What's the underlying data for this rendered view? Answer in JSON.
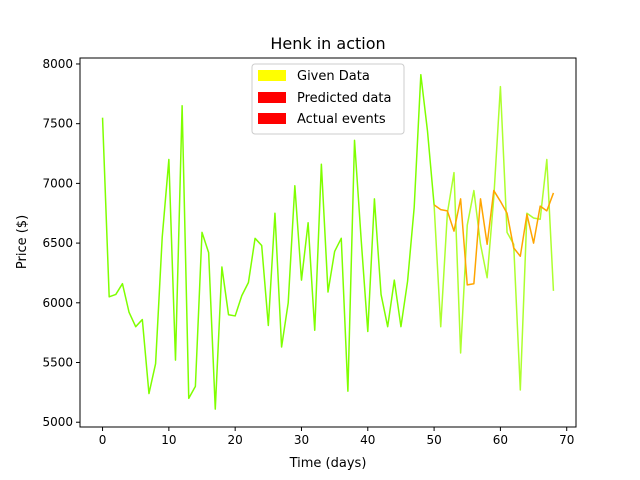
{
  "chart_data": {
    "type": "line",
    "title": "Henk in action",
    "xlabel": "Time (days)",
    "ylabel": "Price ($)",
    "xlim": [
      -3.4,
      71.4
    ],
    "ylim": [
      4960,
      8050
    ],
    "xticks": [
      0,
      10,
      20,
      30,
      40,
      50,
      60,
      70
    ],
    "yticks": [
      5000,
      5500,
      6000,
      6500,
      7000,
      7500,
      8000
    ],
    "legend_position": "upper-center",
    "legend": [
      {
        "label": "Given Data",
        "color": "#ffff00"
      },
      {
        "label": "Predicted data",
        "color": "#ff0000"
      },
      {
        "label": "Actual events",
        "color": "#ff0000"
      }
    ],
    "series": [
      {
        "color": "#7fff00",
        "x": [
          0,
          1,
          2,
          3,
          4,
          5,
          6,
          7,
          8,
          9,
          10,
          11,
          12,
          13,
          14,
          15,
          16,
          17,
          18,
          19,
          20,
          21,
          22,
          23,
          24,
          25,
          26,
          27,
          28,
          29,
          30,
          31,
          32,
          33,
          34,
          35,
          36,
          37,
          38,
          39,
          40,
          41,
          42,
          43,
          44,
          45,
          46,
          47,
          48,
          49,
          50
        ],
        "y": [
          7550,
          6050,
          6070,
          6160,
          5920,
          5800,
          5860,
          5240,
          5490,
          6550,
          7200,
          5520,
          7650,
          5200,
          5300,
          6590,
          6420,
          5110,
          6300,
          5900,
          5890,
          6060,
          6170,
          6540,
          6480,
          5810,
          6750,
          5630,
          6000,
          6980,
          6190,
          6670,
          5770,
          7160,
          6090,
          6430,
          6540,
          5260,
          7360,
          6530,
          5760,
          6870,
          6070,
          5800,
          6190,
          5800,
          6180,
          6800,
          7910,
          7440,
          6820
        ]
      },
      {
        "color": "#adff2f",
        "x": [
          50,
          51,
          52,
          53,
          54,
          55,
          56,
          57,
          58,
          59,
          60,
          61,
          62,
          63,
          64,
          65,
          66,
          67,
          68
        ],
        "y": [
          6820,
          5800,
          6750,
          7090,
          5580,
          6650,
          6940,
          6490,
          6210,
          6880,
          7810,
          6590,
          6490,
          5270,
          6750,
          6710,
          6700,
          7200,
          6100
        ]
      },
      {
        "color": "#ffa500",
        "x": [
          50,
          51,
          52,
          53,
          54,
          55,
          56,
          57,
          58,
          59,
          60,
          61,
          62,
          63,
          64,
          65,
          66,
          67,
          68
        ],
        "y": [
          6820,
          6780,
          6770,
          6600,
          6870,
          6150,
          6160,
          6870,
          6490,
          6940,
          6850,
          6750,
          6460,
          6390,
          6740,
          6500,
          6810,
          6770,
          6920
        ]
      }
    ]
  }
}
